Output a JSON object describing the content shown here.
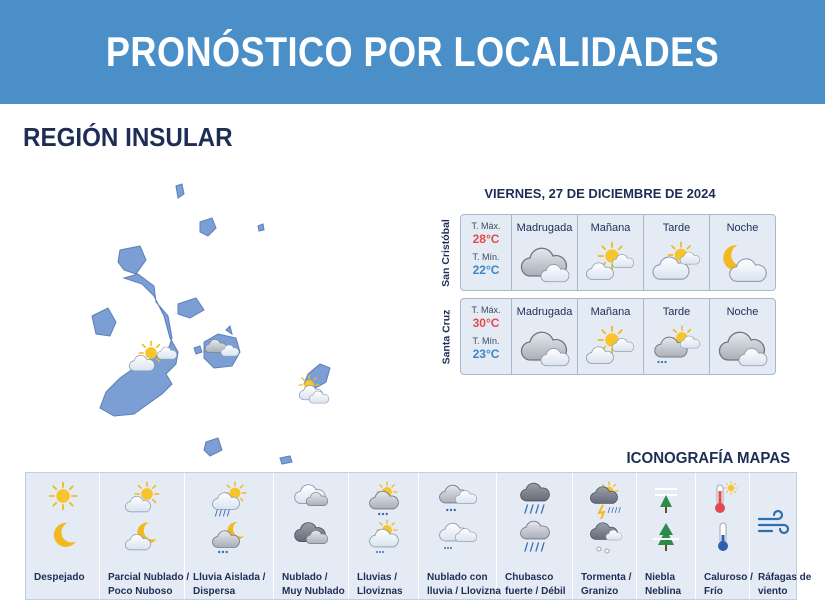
{
  "header": {
    "title": "PRONÓSTICO POR LOCALIDADES"
  },
  "region": {
    "title": "REGIÓN INSULAR"
  },
  "forecast": {
    "date": "VIERNES, 27 DE DICIEMBRE DE 2024",
    "locations": [
      {
        "name": "San Cristóbal",
        "tmax_label": "T. Máx.",
        "tmax": "28°C",
        "tmin_label": "T. Mín.",
        "tmin": "22°C",
        "periods": [
          {
            "label": "Madrugada",
            "icon": "cloudy-icon"
          },
          {
            "label": "Mañana",
            "icon": "partly-cloudy-icon"
          },
          {
            "label": "Tarde",
            "icon": "partly-cloudy-icon"
          },
          {
            "label": "Noche",
            "icon": "moon-cloud-icon"
          }
        ]
      },
      {
        "name": "Santa Cruz",
        "tmax_label": "T. Máx.",
        "tmax": "30°C",
        "tmin_label": "T. Mín.",
        "tmin": "23°C",
        "periods": [
          {
            "label": "Madrugada",
            "icon": "cloudy-icon"
          },
          {
            "label": "Mañana",
            "icon": "partly-cloudy-icon"
          },
          {
            "label": "Tarde",
            "icon": "light-rain-icon"
          },
          {
            "label": "Noche",
            "icon": "cloudy-icon"
          }
        ]
      }
    ]
  },
  "legend": {
    "title": "ICONOGRAFÍA MAPAS",
    "items": [
      {
        "line1": "Despejado",
        "line2": ""
      },
      {
        "line1": "Parcial Nublado /",
        "line2": "Poco Nuboso"
      },
      {
        "line1": "Lluvia Aislada /",
        "line2": "Dispersa"
      },
      {
        "line1": "Nublado /",
        "line2": "Muy Nublado"
      },
      {
        "line1": "Lluvias /",
        "line2": "Lloviznas"
      },
      {
        "line1": "Nublado con",
        "line2": "lluvia / Llovizna"
      },
      {
        "line1": "Chubasco",
        "line2": "fuerte / Débil"
      },
      {
        "line1": "Tormenta /",
        "line2": "Granizo"
      },
      {
        "line1": "Niebla",
        "line2": "Neblina"
      },
      {
        "line1": "Caluroso /",
        "line2": "Frío"
      },
      {
        "line1": "Ráfagas de",
        "line2": "viento"
      }
    ]
  },
  "colors": {
    "banner": "#4a8fc8",
    "island": "#7b9fd4",
    "sun": "#f2b81f",
    "tmax": "#e24b4b",
    "tmin": "#3a86c8",
    "card": "#e4ebf5"
  }
}
